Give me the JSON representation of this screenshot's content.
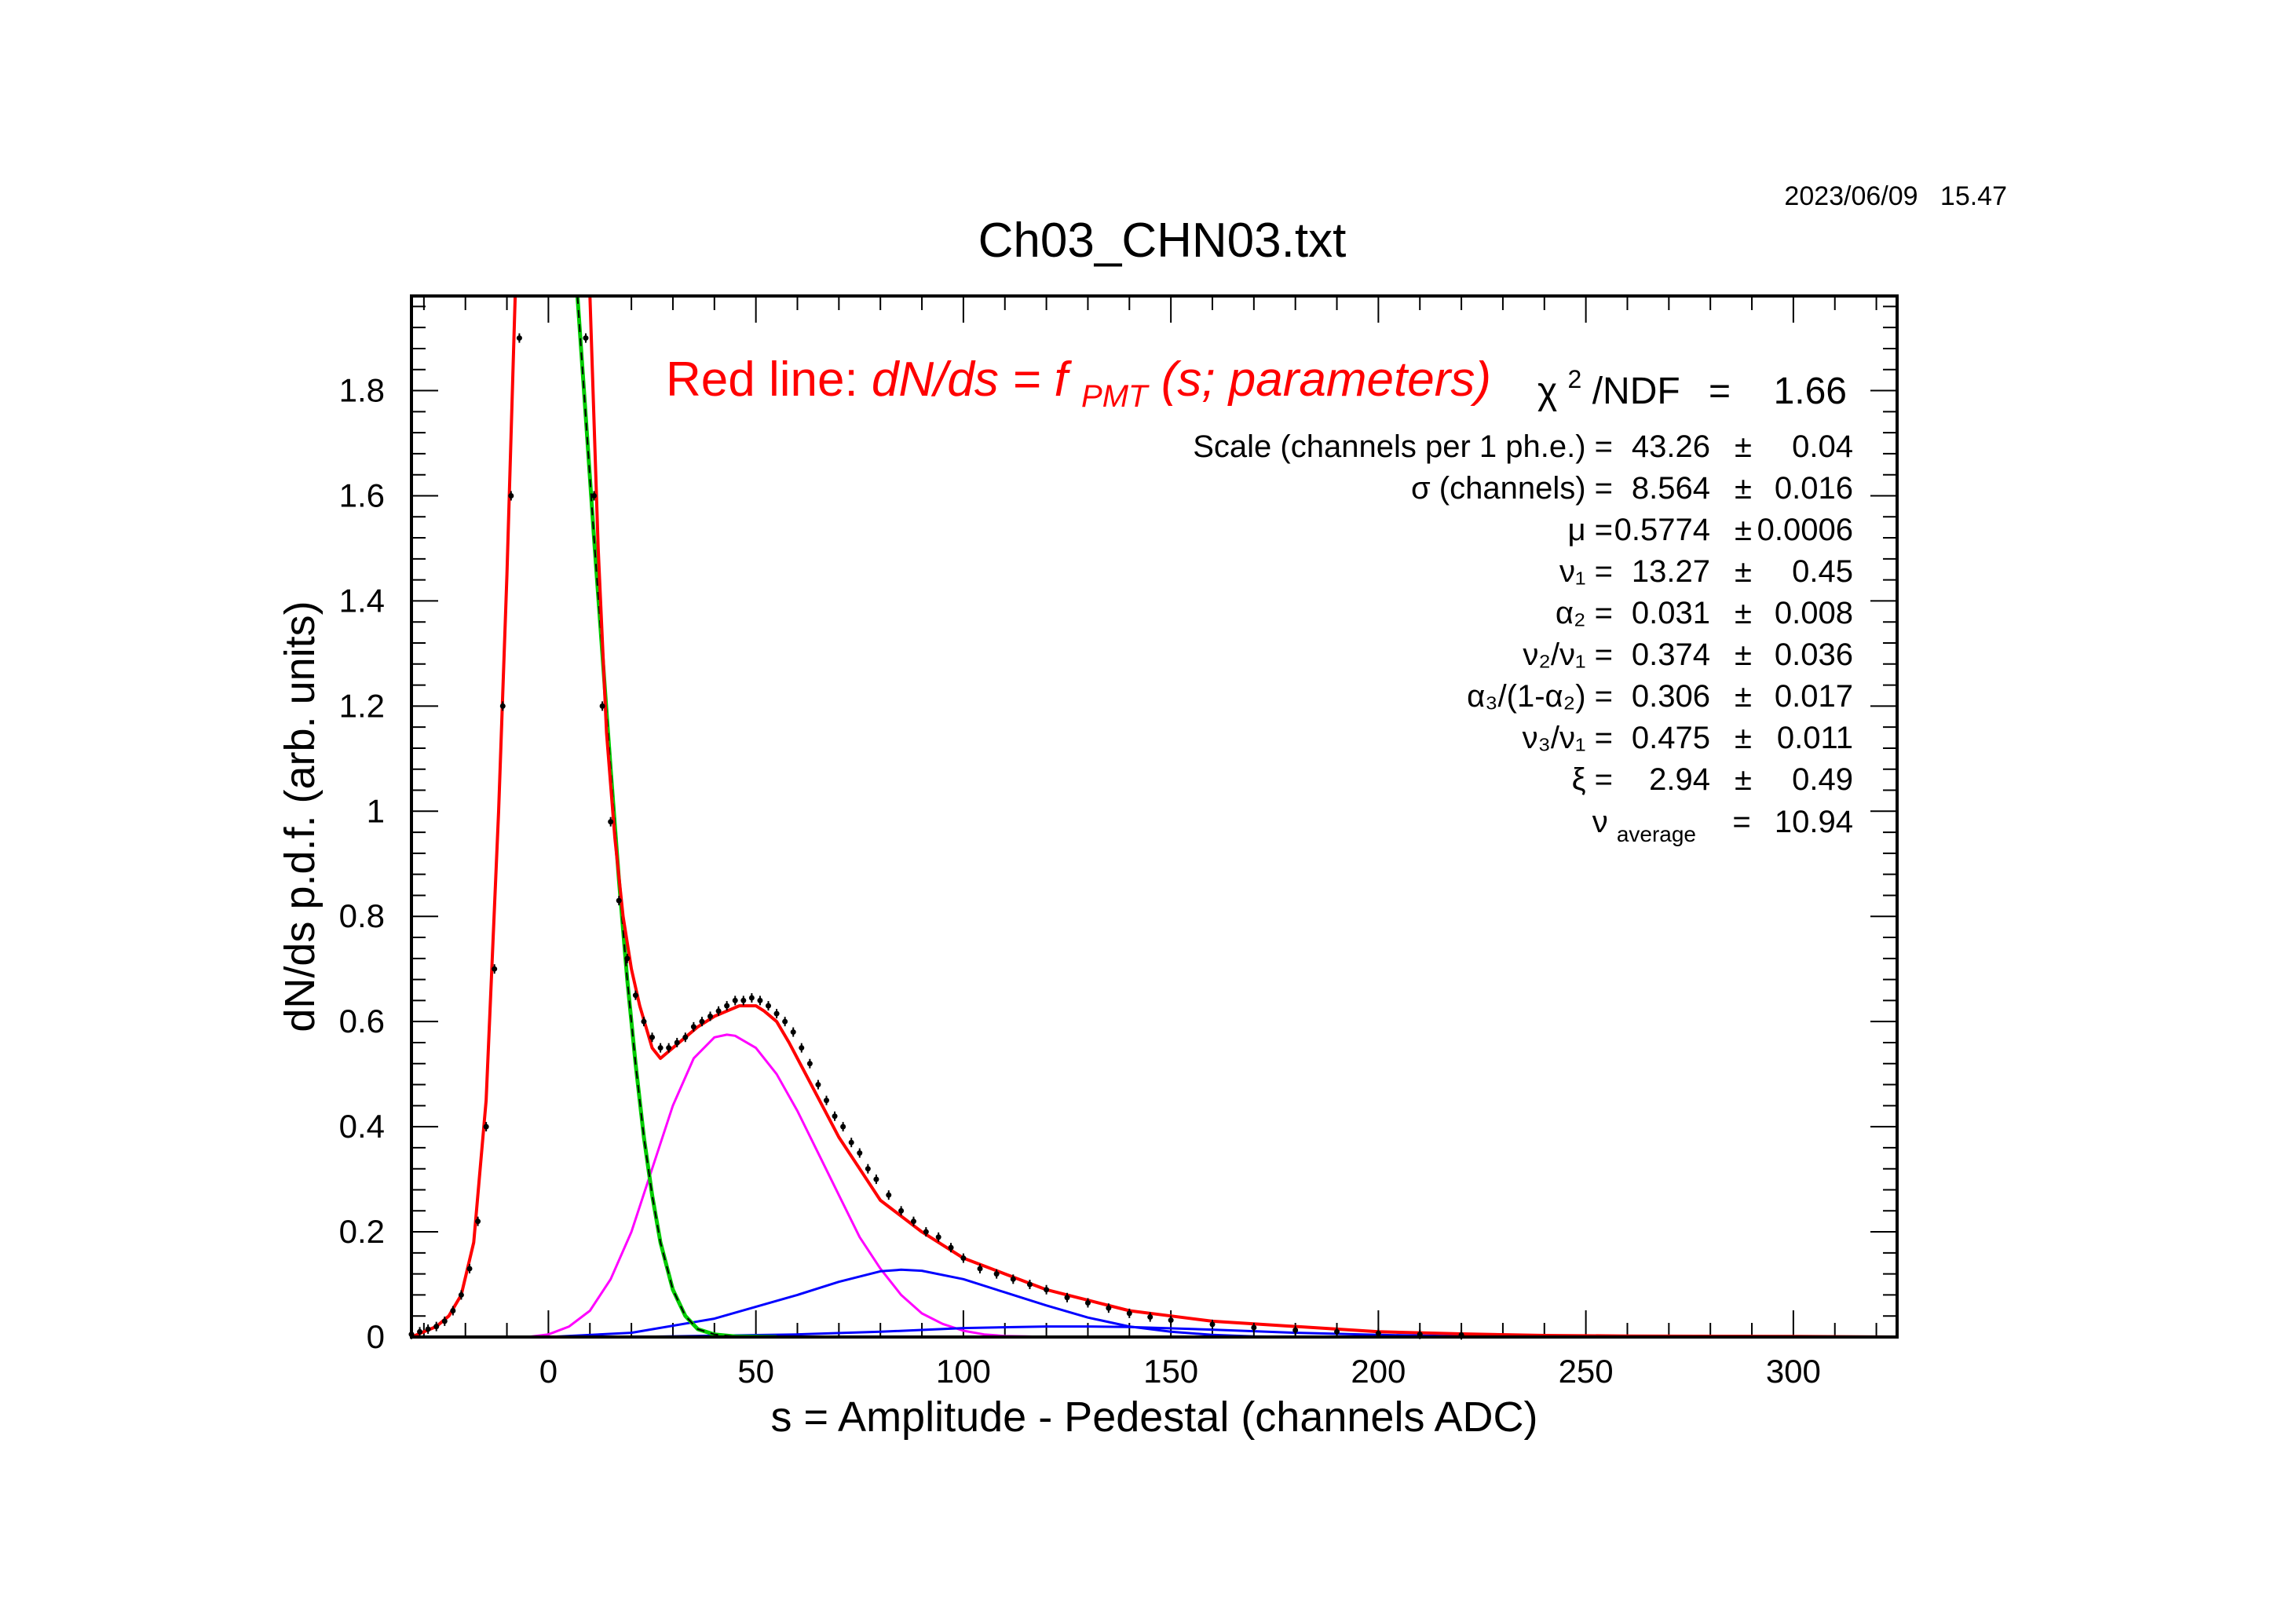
{
  "timestamp": "2023/06/09   15.47",
  "title": "Ch03_CHN03.txt",
  "fit_label": {
    "prefix": "Red line:",
    "formula_a": "dN/ds = f",
    "formula_sub": "PMT",
    "formula_b": "(s; parameters)"
  },
  "chi2": {
    "symbol": "χ",
    "sup": "2",
    "label": "/NDF",
    "eq": "=",
    "value": "1.66"
  },
  "parameters": [
    {
      "name": "Scale (channels per 1 ph.e.) =",
      "value": "43.26",
      "pm": "±",
      "err": "0.04"
    },
    {
      "name": "σ (channels) =",
      "value": "8.564",
      "pm": "±",
      "err": "0.016"
    },
    {
      "name": "μ  =",
      "value": "0.5774",
      "pm": "±",
      "err": "0.0006"
    },
    {
      "name": "ν₁ =",
      "value": "13.27",
      "pm": "±",
      "err": "0.45"
    },
    {
      "name": "α₂ =",
      "value": "0.031",
      "pm": "±",
      "err": "0.008"
    },
    {
      "name": "ν₂/ν₁ =",
      "value": "0.374",
      "pm": "±",
      "err": "0.036"
    },
    {
      "name": "α₃/(1-α₂) =",
      "value": "0.306",
      "pm": "±",
      "err": "0.017"
    },
    {
      "name": "ν₃/ν₁ =",
      "value": "0.475",
      "pm": "±",
      "err": "0.011"
    },
    {
      "name": "ξ  =",
      "value": "2.94",
      "pm": "±",
      "err": "0.49"
    }
  ],
  "nu_average": {
    "symbol": "ν",
    "sub": "average",
    "eq": "=",
    "value": "10.94"
  },
  "colors": {
    "total_fit": "#ff0000",
    "pedestal": "#00cc00",
    "pedestal_dash": "#000000",
    "single_pe": "#ff00ff",
    "multi_pe": "#0000ff",
    "data": "#000000"
  },
  "chart_data": {
    "type": "line",
    "title": "Ch03_CHN03.txt",
    "xlabel": "s = Amplitude - Pedestal (channels ADC)",
    "ylabel": "dN/ds p.d.f. (arb. units)",
    "xlim": [
      -33,
      325
    ],
    "ylim": [
      0,
      1.98
    ],
    "xticks": [
      0,
      50,
      100,
      150,
      200,
      250,
      300
    ],
    "xtick_labels": [
      "0",
      "50",
      "100",
      "150",
      "200",
      "250",
      "300"
    ],
    "yticks": [
      0,
      0.2,
      0.4,
      0.6,
      0.8,
      1.0,
      1.2,
      1.4,
      1.6,
      1.8
    ],
    "ytick_labels": [
      "0",
      "0.2",
      "0.4",
      "0.6",
      "0.8",
      "1",
      "1.2",
      "1.4",
      "1.6",
      "1.8"
    ],
    "grid": false,
    "series": [
      {
        "name": "Total fit",
        "style": "solid",
        "x": [
          -33,
          -30,
          -27,
          -24,
          -21,
          -18,
          -15,
          -12,
          -10,
          -8,
          10,
          12,
          14,
          16,
          18,
          20,
          22,
          25,
          27,
          30,
          33,
          36,
          40,
          43,
          46,
          48,
          50,
          52,
          55,
          58,
          62,
          66,
          70,
          75,
          80,
          90,
          100,
          110,
          120,
          130,
          140,
          150,
          160,
          180,
          200,
          220,
          240,
          260,
          300,
          325
        ],
        "y": [
          0.0,
          0.01,
          0.02,
          0.04,
          0.08,
          0.18,
          0.45,
          1.0,
          1.45,
          1.98,
          1.98,
          1.5,
          1.15,
          0.95,
          0.8,
          0.7,
          0.63,
          0.55,
          0.53,
          0.55,
          0.57,
          0.59,
          0.61,
          0.62,
          0.63,
          0.63,
          0.63,
          0.62,
          0.6,
          0.56,
          0.5,
          0.44,
          0.38,
          0.32,
          0.26,
          0.2,
          0.15,
          0.12,
          0.09,
          0.07,
          0.05,
          0.04,
          0.03,
          0.02,
          0.01,
          0.006,
          0.003,
          0.002,
          0.001,
          0.0
        ]
      },
      {
        "name": "Pedestal",
        "style": "green-dashed",
        "x": [
          7,
          9,
          11,
          13,
          15,
          17,
          19,
          21,
          23,
          25,
          27,
          30,
          33,
          36,
          40,
          45,
          55
        ],
        "y": [
          1.98,
          1.75,
          1.52,
          1.3,
          1.08,
          0.87,
          0.68,
          0.52,
          0.38,
          0.27,
          0.18,
          0.09,
          0.04,
          0.015,
          0.005,
          0.001,
          0.0
        ]
      },
      {
        "name": "1 ph.e.",
        "style": "solid",
        "x": [
          -5,
          0,
          5,
          10,
          15,
          20,
          25,
          30,
          35,
          40,
          43,
          45,
          50,
          55,
          60,
          65,
          70,
          75,
          80,
          85,
          90,
          95,
          100,
          105,
          110,
          115,
          120
        ],
        "y": [
          0.0,
          0.005,
          0.02,
          0.05,
          0.11,
          0.2,
          0.32,
          0.44,
          0.53,
          0.57,
          0.575,
          0.573,
          0.55,
          0.5,
          0.43,
          0.35,
          0.27,
          0.19,
          0.13,
          0.08,
          0.045,
          0.025,
          0.012,
          0.005,
          0.002,
          0.001,
          0.0
        ]
      },
      {
        "name": "2 ph.e.",
        "style": "solid",
        "x": [
          0,
          20,
          40,
          60,
          70,
          80,
          85,
          90,
          100,
          110,
          120,
          130,
          140,
          150,
          160,
          170,
          180
        ],
        "y": [
          0.0,
          0.008,
          0.035,
          0.08,
          0.105,
          0.125,
          0.128,
          0.126,
          0.11,
          0.085,
          0.06,
          0.037,
          0.02,
          0.01,
          0.004,
          0.001,
          0.0
        ]
      },
      {
        "name": "3 ph.e.",
        "style": "solid",
        "x": [
          20,
          60,
          80,
          100,
          120,
          130,
          140,
          160,
          180,
          200,
          230
        ],
        "y": [
          0.0,
          0.005,
          0.01,
          0.017,
          0.02,
          0.02,
          0.019,
          0.014,
          0.008,
          0.004,
          0.0
        ]
      }
    ],
    "points": {
      "name": "Data",
      "x": [
        -33,
        -31,
        -29,
        -27,
        -25,
        -23,
        -21,
        -19,
        -17,
        -15,
        -13,
        -11,
        -9,
        -7,
        9,
        11,
        13,
        15,
        17,
        19,
        21,
        23,
        25,
        27,
        29,
        31,
        33,
        35,
        37,
        39,
        41,
        43,
        45,
        47,
        49,
        51,
        53,
        55,
        57,
        59,
        61,
        63,
        65,
        67,
        69,
        71,
        73,
        75,
        77,
        79,
        82,
        85,
        88,
        91,
        94,
        97,
        100,
        104,
        108,
        112,
        116,
        120,
        125,
        130,
        135,
        140,
        145,
        150,
        160,
        170,
        180,
        190,
        200,
        210,
        220
      ],
      "y": [
        0.005,
        0.01,
        0.015,
        0.02,
        0.03,
        0.05,
        0.08,
        0.13,
        0.22,
        0.4,
        0.7,
        1.2,
        1.6,
        1.9,
        1.9,
        1.6,
        1.2,
        0.98,
        0.83,
        0.72,
        0.65,
        0.6,
        0.57,
        0.55,
        0.55,
        0.56,
        0.57,
        0.59,
        0.6,
        0.61,
        0.62,
        0.63,
        0.64,
        0.64,
        0.645,
        0.64,
        0.63,
        0.615,
        0.6,
        0.58,
        0.55,
        0.52,
        0.48,
        0.45,
        0.42,
        0.4,
        0.37,
        0.35,
        0.32,
        0.3,
        0.27,
        0.24,
        0.22,
        0.2,
        0.19,
        0.17,
        0.15,
        0.13,
        0.12,
        0.11,
        0.1,
        0.09,
        0.075,
        0.065,
        0.055,
        0.045,
        0.038,
        0.032,
        0.024,
        0.018,
        0.013,
        0.01,
        0.007,
        0.005,
        0.004
      ]
    }
  }
}
